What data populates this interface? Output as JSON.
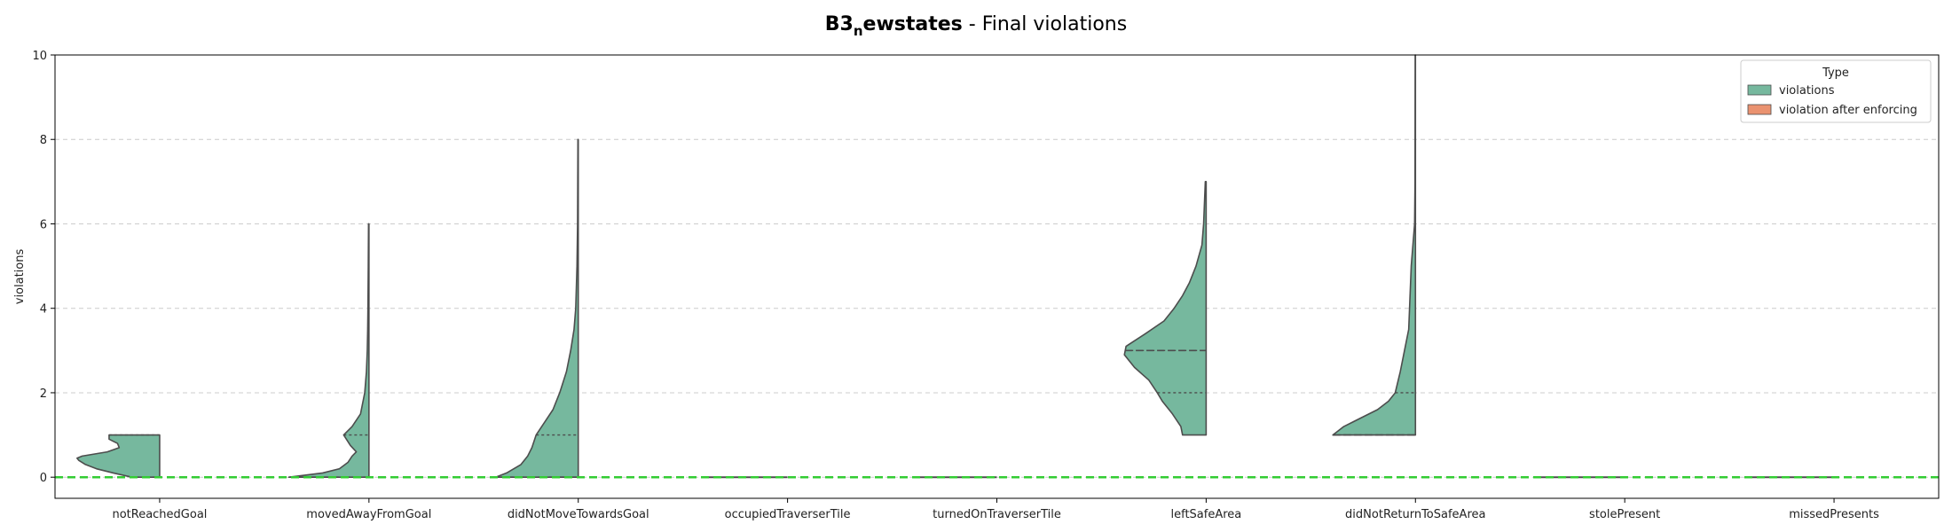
{
  "title": {
    "prefix": "B3",
    "subscript": "n",
    "bold_rest": "ewstates",
    "suffix": " - Final violations"
  },
  "colors": {
    "violations": "#76b89e",
    "violation_after_enforcing": "#ea9270",
    "baseline": "#33cc33",
    "grid": "#cccccc",
    "outline": "#4d4d4d"
  },
  "chart_data": {
    "type": "violin",
    "title": "B3_newstates - Final violations",
    "xlabel": "",
    "ylabel": "violations",
    "ylim": [
      -0.5,
      10
    ],
    "yticks": [
      0,
      2,
      4,
      6,
      8,
      10
    ],
    "grid": "horizontal, dashed",
    "reference_line": 0,
    "legend": {
      "title": "Type",
      "position": "top-right",
      "entries": [
        "violations",
        "violation after enforcing"
      ]
    },
    "categories": [
      "notReachedGoal",
      "movedAwayFromGoal",
      "didNotMoveTowardsGoal",
      "occupiedTraverserTile",
      "turnedOnTraverserTile",
      "leftSafeArea",
      "didNotReturnToSafeArea",
      "stolePresent",
      "missedPresents"
    ],
    "series": [
      {
        "name": "violations",
        "side": "left",
        "violins": [
          {
            "ymin": 0,
            "ymax": 1,
            "q1": 0,
            "median": 0,
            "q3": 1,
            "profile": [
              [
                0,
                0.33
              ],
              [
                0.1,
                0.55
              ],
              [
                0.2,
                0.75
              ],
              [
                0.3,
                0.88
              ],
              [
                0.4,
                0.96
              ],
              [
                0.45,
                0.98
              ],
              [
                0.5,
                0.92
              ],
              [
                0.6,
                0.62
              ],
              [
                0.7,
                0.48
              ],
              [
                0.8,
                0.5
              ],
              [
                0.9,
                0.6
              ],
              [
                1,
                0.6
              ]
            ]
          },
          {
            "ymin": 0,
            "ymax": 6,
            "q1": 0,
            "median": 0,
            "q3": 1,
            "profile": [
              [
                0,
                0.95
              ],
              [
                0.1,
                0.55
              ],
              [
                0.2,
                0.35
              ],
              [
                0.35,
                0.25
              ],
              [
                0.5,
                0.2
              ],
              [
                0.6,
                0.15
              ],
              [
                0.75,
                0.22
              ],
              [
                1,
                0.3
              ],
              [
                1.2,
                0.2
              ],
              [
                1.5,
                0.1
              ],
              [
                2,
                0.05
              ],
              [
                2.5,
                0.03
              ],
              [
                3,
                0.02
              ],
              [
                3.5,
                0.015
              ],
              [
                4,
                0.012
              ],
              [
                5,
                0.008
              ],
              [
                6,
                0.005
              ]
            ]
          },
          {
            "ymin": 0,
            "ymax": 8,
            "q1": 0,
            "median": 0,
            "q3": 1,
            "profile": [
              [
                0,
                0.98
              ],
              [
                0.1,
                0.85
              ],
              [
                0.3,
                0.68
              ],
              [
                0.5,
                0.6
              ],
              [
                0.7,
                0.55
              ],
              [
                1,
                0.5
              ],
              [
                1.3,
                0.4
              ],
              [
                1.6,
                0.3
              ],
              [
                2,
                0.22
              ],
              [
                2.5,
                0.14
              ],
              [
                3,
                0.09
              ],
              [
                3.5,
                0.05
              ],
              [
                4,
                0.03
              ],
              [
                5,
                0.015
              ],
              [
                6,
                0.008
              ],
              [
                8,
                0.004
              ]
            ]
          },
          {
            "ymin": 0,
            "ymax": 0,
            "q1": 0,
            "median": 0,
            "q3": 0,
            "profile": [
              [
                0,
                1
              ],
              [
                0.02,
                1
              ]
            ]
          },
          {
            "ymin": 0,
            "ymax": 0,
            "q1": 0,
            "median": 0,
            "q3": 0,
            "profile": [
              [
                0,
                1
              ],
              [
                0.02,
                1
              ]
            ]
          },
          {
            "ymin": 1,
            "ymax": 7,
            "q1": 2,
            "median": 3,
            "q3": 3,
            "profile": [
              [
                1,
                0.28
              ],
              [
                1.2,
                0.3
              ],
              [
                1.5,
                0.4
              ],
              [
                1.8,
                0.52
              ],
              [
                2,
                0.58
              ],
              [
                2.3,
                0.68
              ],
              [
                2.6,
                0.85
              ],
              [
                2.9,
                0.97
              ],
              [
                3.1,
                0.95
              ],
              [
                3.4,
                0.72
              ],
              [
                3.7,
                0.5
              ],
              [
                4,
                0.38
              ],
              [
                4.3,
                0.28
              ],
              [
                4.6,
                0.2
              ],
              [
                5,
                0.12
              ],
              [
                5.5,
                0.05
              ],
              [
                6,
                0.03
              ],
              [
                7,
                0.01
              ]
            ]
          },
          {
            "ymin": 1,
            "ymax": 10,
            "q1": 1,
            "median": 1,
            "q3": 2,
            "profile": [
              [
                1,
                0.98
              ],
              [
                1.2,
                0.85
              ],
              [
                1.4,
                0.65
              ],
              [
                1.6,
                0.45
              ],
              [
                1.8,
                0.32
              ],
              [
                2,
                0.24
              ],
              [
                2.5,
                0.18
              ],
              [
                3,
                0.13
              ],
              [
                3.5,
                0.08
              ],
              [
                4,
                0.07
              ],
              [
                5,
                0.05
              ],
              [
                6,
                0.01
              ],
              [
                7,
                0.005
              ],
              [
                10,
                0.003
              ]
            ]
          },
          {
            "ymin": 0,
            "ymax": 0,
            "q1": 0,
            "median": 0,
            "q3": 0,
            "profile": [
              [
                0,
                1
              ],
              [
                0.02,
                1
              ]
            ]
          },
          {
            "ymin": 0,
            "ymax": 0,
            "q1": 0,
            "median": 0,
            "q3": 0,
            "profile": [
              [
                0,
                1
              ],
              [
                0.02,
                1
              ]
            ]
          }
        ]
      },
      {
        "name": "violation after enforcing",
        "side": "right",
        "violins": []
      }
    ]
  }
}
